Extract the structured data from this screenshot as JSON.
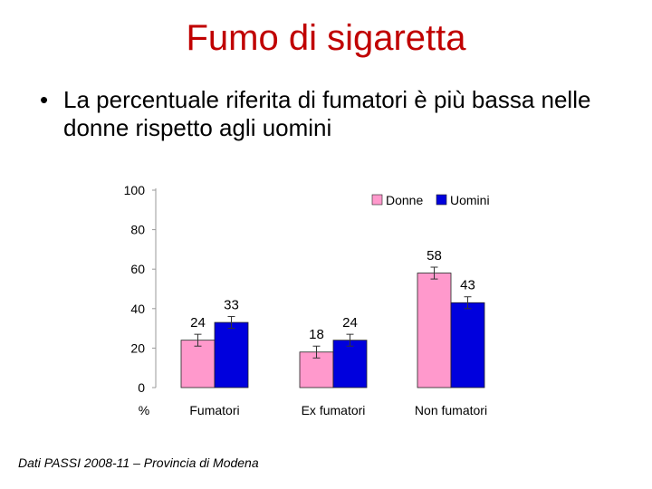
{
  "slide": {
    "title": "Fumo di sigaretta",
    "bullet_symbol": "•",
    "bullet": "La percentuale riferita di fumatori è più bassa nelle donne rispetto agli uomini",
    "source": "Dati PASSI 2008-11 – Provincia di Modena"
  },
  "chart_data": {
    "type": "bar",
    "categories": [
      "Fumatori",
      "Ex fumatori",
      "Non fumatori"
    ],
    "series": [
      {
        "name": "Donne",
        "values": [
          24,
          18,
          58
        ],
        "color": "#ff99cc"
      },
      {
        "name": "Uomini",
        "values": [
          33,
          24,
          43
        ],
        "color": "#0000dd"
      }
    ],
    "ylabel": "%",
    "ylim": [
      0,
      100
    ],
    "yticks": [
      0,
      20,
      40,
      60,
      80,
      100
    ],
    "error_bars": true,
    "legend": "top-right",
    "grid": false
  }
}
